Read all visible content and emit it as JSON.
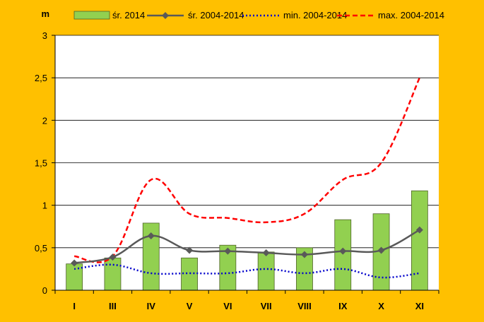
{
  "chart_data": {
    "type": "bar",
    "unit_label": "m",
    "categories": [
      "I",
      "III",
      "IV",
      "V",
      "VI",
      "VII",
      "VIII",
      "IX",
      "X",
      "XI"
    ],
    "ylim": [
      0,
      3
    ],
    "yticks": [
      0,
      0.5,
      1,
      1.5,
      2,
      2.5,
      3
    ],
    "ytick_labels": [
      "0",
      "0,5",
      "1",
      "1,5",
      "2",
      "2,5",
      "3"
    ],
    "grid": true,
    "legend_position": "top",
    "series": [
      {
        "name": "śr. 2014",
        "kind": "bar",
        "color": "#92d050",
        "values": [
          0.31,
          0.38,
          0.79,
          0.38,
          0.53,
          0.45,
          0.5,
          0.83,
          0.9,
          1.17
        ]
      },
      {
        "name": "śr. 2004-2014",
        "kind": "line-marker",
        "color": "#595959",
        "values": [
          0.32,
          0.39,
          0.64,
          0.47,
          0.46,
          0.44,
          0.42,
          0.46,
          0.47,
          0.71
        ]
      },
      {
        "name": "min. 2004-2014",
        "kind": "dotted",
        "color": "#0000cc",
        "values": [
          0.25,
          0.3,
          0.2,
          0.2,
          0.2,
          0.25,
          0.2,
          0.25,
          0.15,
          0.2
        ]
      },
      {
        "name": "max. 2004-2014",
        "kind": "dashed",
        "color": "#ff0000",
        "values": [
          0.4,
          0.4,
          1.3,
          0.9,
          0.85,
          0.8,
          0.9,
          1.3,
          1.5,
          2.5
        ]
      }
    ]
  }
}
